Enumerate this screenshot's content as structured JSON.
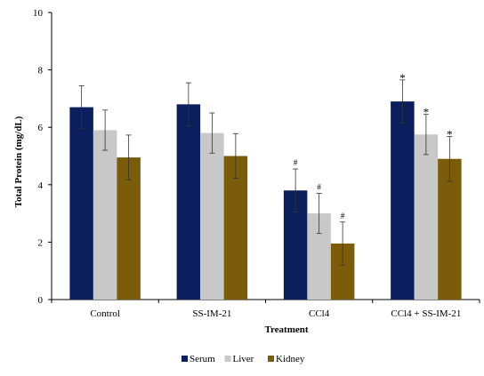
{
  "chart_data": {
    "type": "bar",
    "xlabel": "Treatment",
    "ylabel": "Total Protein (mg/dL)",
    "ylim": [
      0,
      10
    ],
    "yticks": [
      0,
      2,
      4,
      6,
      8,
      10
    ],
    "categories": [
      "Control",
      "SS-IM-21",
      "CCl4",
      "CCl4 + SS-IM-21"
    ],
    "series": [
      {
        "name": "Serum",
        "color": "#0a1f5c",
        "values": [
          6.7,
          6.8,
          3.8,
          6.9
        ],
        "errors": [
          0.75,
          0.75,
          0.75,
          0.75
        ],
        "annotations": [
          "",
          "",
          "#",
          "*"
        ]
      },
      {
        "name": "Liver",
        "color": "#c8c8c8",
        "values": [
          5.9,
          5.8,
          3.0,
          5.75
        ],
        "errors": [
          0.7,
          0.7,
          0.7,
          0.7
        ],
        "annotations": [
          "",
          "",
          "#",
          "*"
        ]
      },
      {
        "name": "Kidney",
        "color": "#7a5c0a",
        "values": [
          4.95,
          5.0,
          1.95,
          4.9
        ],
        "errors": [
          0.78,
          0.78,
          0.75,
          0.78
        ],
        "annotations": [
          "",
          "",
          "#",
          "*"
        ]
      }
    ],
    "legend_position": "bottom",
    "grid": false
  }
}
